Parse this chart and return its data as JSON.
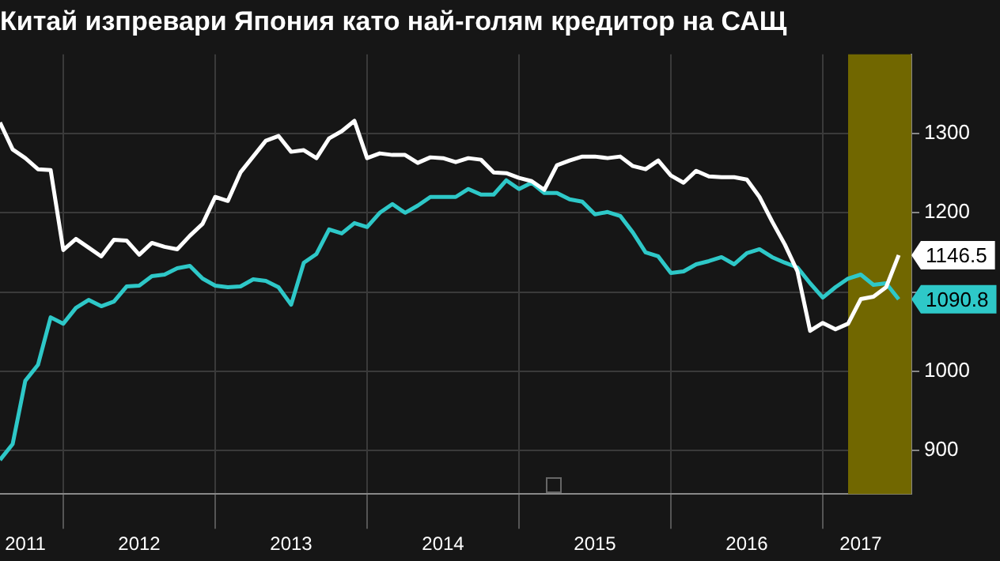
{
  "chart_data": {
    "type": "line",
    "title": "Китай изпревари Япония като най-голям кредитор на САЩ",
    "x": [
      "2011-08",
      "2011-09",
      "2011-10",
      "2011-11",
      "2011-12",
      "2012-01",
      "2012-02",
      "2012-03",
      "2012-04",
      "2012-05",
      "2012-06",
      "2012-07",
      "2012-08",
      "2012-09",
      "2012-10",
      "2012-11",
      "2012-12",
      "2013-01",
      "2013-02",
      "2013-03",
      "2013-04",
      "2013-05",
      "2013-06",
      "2013-07",
      "2013-08",
      "2013-09",
      "2013-10",
      "2013-11",
      "2013-12",
      "2014-01",
      "2014-02",
      "2014-03",
      "2014-04",
      "2014-05",
      "2014-06",
      "2014-07",
      "2014-08",
      "2014-09",
      "2014-10",
      "2014-11",
      "2014-12",
      "2015-01",
      "2015-02",
      "2015-03",
      "2015-04",
      "2015-05",
      "2015-06",
      "2015-07",
      "2015-08",
      "2015-09",
      "2015-10",
      "2015-11",
      "2015-12",
      "2016-01",
      "2016-02",
      "2016-03",
      "2016-04",
      "2016-05",
      "2016-06",
      "2016-07",
      "2016-08",
      "2016-09",
      "2016-10",
      "2016-11",
      "2016-12",
      "2017-01",
      "2017-02",
      "2017-03",
      "2017-04",
      "2017-05",
      "2017-06",
      "2017-07"
    ],
    "series": [
      {
        "color": "#ffffff",
        "values": [
          1314,
          1280,
          1269,
          1255,
          1254,
          1153,
          1167,
          1156,
          1145,
          1166,
          1165,
          1147,
          1162,
          1157,
          1154,
          1171,
          1186,
          1220,
          1215,
          1251,
          1271,
          1291,
          1297,
          1277,
          1279,
          1269,
          1294,
          1303,
          1316,
          1269,
          1275,
          1273,
          1273,
          1263,
          1270,
          1269,
          1264,
          1269,
          1267,
          1251,
          1250,
          1244,
          1240,
          1229,
          1260,
          1266,
          1271,
          1271,
          1269,
          1271,
          1259,
          1255,
          1266,
          1247,
          1238,
          1253,
          1246,
          1245,
          1245,
          1242,
          1220,
          1189,
          1160,
          1126,
          1051,
          1061,
          1053,
          1060,
          1091,
          1094,
          1106,
          1146.5
        ]
      },
      {
        "color": "#2ec8c8",
        "values": [
          888,
          908,
          988,
          1008,
          1068,
          1060,
          1080,
          1090,
          1082,
          1088,
          1107,
          1108,
          1120,
          1122,
          1130,
          1133,
          1117,
          1108,
          1106,
          1107,
          1116,
          1114,
          1106,
          1084,
          1137,
          1148,
          1179,
          1174,
          1187,
          1182,
          1200,
          1211,
          1200,
          1209,
          1220,
          1220,
          1220,
          1230,
          1223,
          1223,
          1241,
          1230,
          1238,
          1225,
          1225,
          1217,
          1214,
          1198,
          1201,
          1196,
          1175,
          1150,
          1145,
          1124,
          1126,
          1135,
          1139,
          1144,
          1135,
          1149,
          1154,
          1144,
          1137,
          1131,
          1111,
          1093,
          1106,
          1117,
          1122,
          1109,
          1111,
          1090.8
        ]
      }
    ],
    "xlim": [
      "2011-08",
      "2017-08"
    ],
    "xticks": [
      {
        "value": "2011-10",
        "label": "2011"
      },
      {
        "value": "2012-01",
        "label": null
      },
      {
        "value": "2012-07",
        "label": "2012"
      },
      {
        "value": "2013-01",
        "label": null
      },
      {
        "value": "2013-07",
        "label": "2013"
      },
      {
        "value": "2014-01",
        "label": null
      },
      {
        "value": "2014-07",
        "label": "2014"
      },
      {
        "value": "2015-01",
        "label": null
      },
      {
        "value": "2015-07",
        "label": "2015"
      },
      {
        "value": "2016-01",
        "label": null
      },
      {
        "value": "2016-07",
        "label": "2016"
      },
      {
        "value": "2017-01",
        "label": null
      },
      {
        "value": "2017-04",
        "label": "2017"
      }
    ],
    "ylim": [
      845,
      1400
    ],
    "yticks": [
      900,
      1000,
      {
        "value": 1100,
        "label": null
      },
      1200,
      1300
    ],
    "grid": true,
    "marker": "none",
    "line_style": "solid",
    "bands": [
      {
        "axis": "x",
        "from": "2017-03",
        "to": "2017-08",
        "color": "#716700"
      }
    ],
    "annotations": [
      {
        "text": "1146.5",
        "x": "2017-07",
        "y": 1146.5
      },
      {
        "text": "1090.8",
        "x": "2017-07",
        "y": 1090.8
      }
    ]
  }
}
